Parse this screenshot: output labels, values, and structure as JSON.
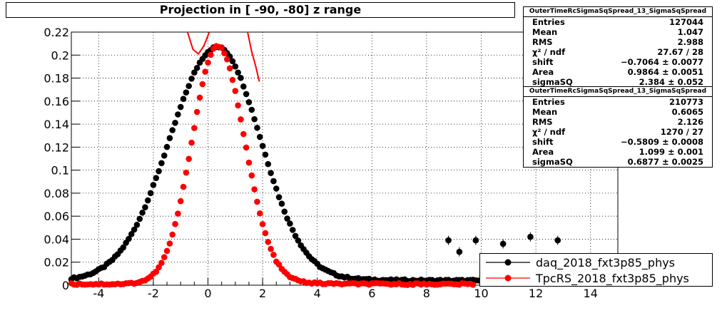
{
  "title": "Projection in [ -90, -80] z range",
  "stats": [
    {
      "title": "OuterTimeRcSigmaSqSpread_13_SigmaSqSpread",
      "rows": [
        {
          "label": "Entries",
          "value": "127044"
        },
        {
          "label": "Mean",
          "value": "1.047"
        },
        {
          "label": "RMS",
          "value": "2.988"
        },
        {
          "label": "χ² / ndf",
          "value": "27.67 / 28"
        },
        {
          "label": "shift",
          "value": "−0.7064 ± 0.0077"
        },
        {
          "label": "Area",
          "value": "0.9864 ± 0.0051"
        },
        {
          "label": "sigmaSQ",
          "value": "2.384 ± 0.052"
        }
      ]
    },
    {
      "title": "OuterTimeRcSigmaSqSpread_13_SigmaSqSpread",
      "rows": [
        {
          "label": "Entries",
          "value": "210773"
        },
        {
          "label": "Mean",
          "value": "0.6065"
        },
        {
          "label": "RMS",
          "value": "2.126"
        },
        {
          "label": "χ² / ndf",
          "value": "1270 / 27"
        },
        {
          "label": "shift",
          "value": "−0.5809 ± 0.0008"
        },
        {
          "label": "Area",
          "value": "1.099 ± 0.001"
        },
        {
          "label": "sigmaSQ",
          "value": "0.6877 ± 0.0025"
        }
      ]
    }
  ],
  "legend": [
    {
      "label": "daq_2018_fxt3p85_phys",
      "color": "#000000"
    },
    {
      "label": "TpcRS_2018_fxt3p85_phys",
      "color": "#ff0000"
    }
  ],
  "chart_data": {
    "type": "scatter",
    "title": "Projection in [ -90, -80] z range",
    "xlim": [
      -5,
      15
    ],
    "ylim": [
      0,
      0.22
    ],
    "grid": true,
    "legend_position": "bottom-right",
    "x_ticks": [
      -4,
      -2,
      0,
      2,
      4,
      6,
      8,
      10,
      12,
      14
    ],
    "y_ticks": [
      0,
      0.02,
      0.04,
      0.06,
      0.08,
      0.1,
      0.12,
      0.14,
      0.16,
      0.18,
      0.2,
      0.22
    ],
    "y_tick_labels": [
      "0",
      "0.02",
      "0.04",
      "0.06",
      "0.08",
      "0.1",
      "0.12",
      "0.14",
      "0.16",
      "0.18",
      "0.2",
      "0.22"
    ],
    "series": [
      {
        "name": "daq_2018_fxt3p85_phys",
        "color": "#000000",
        "shape": {
          "type": "gauss",
          "mu": 0.35,
          "sigma_left": 1.75,
          "sigma_right": 1.55,
          "peak": 0.207,
          "baseline": 0.004,
          "tail_amp": 0.012,
          "tail_decay": 1.8
        },
        "x_start": -5.0,
        "x_end": 14.8,
        "step": 0.1,
        "outliers": [
          {
            "x": 8.8,
            "y": 0.039
          },
          {
            "x": 9.2,
            "y": 0.029
          },
          {
            "x": 9.8,
            "y": 0.039
          },
          {
            "x": 10.8,
            "y": 0.036
          },
          {
            "x": 11.8,
            "y": 0.042
          },
          {
            "x": 12.8,
            "y": 0.039
          }
        ]
      },
      {
        "name": "TpcRS_2018_fxt3p85_phys",
        "color": "#ff0000",
        "shape": {
          "type": "gauss",
          "mu": 0.35,
          "sigma_left": 0.93,
          "sigma_right": 0.98,
          "peak": 0.208,
          "baseline": 0.001,
          "tail_amp": 0.01,
          "tail_decay": 1.2
        },
        "x_start": -5.0,
        "x_end": 9.7,
        "step": 0.1,
        "outliers": []
      }
    ],
    "fit": {
      "color": "#ff0000",
      "segments": [
        {
          "x": [
            -0.75,
            -0.55,
            -0.35,
            -0.15,
            0.05
          ],
          "y": [
            0.22,
            0.205,
            0.201,
            0.208,
            0.22
          ]
        },
        {
          "x": [
            1.45,
            1.6,
            1.75,
            1.88
          ],
          "y": [
            0.22,
            0.203,
            0.19,
            0.177
          ]
        }
      ]
    }
  }
}
